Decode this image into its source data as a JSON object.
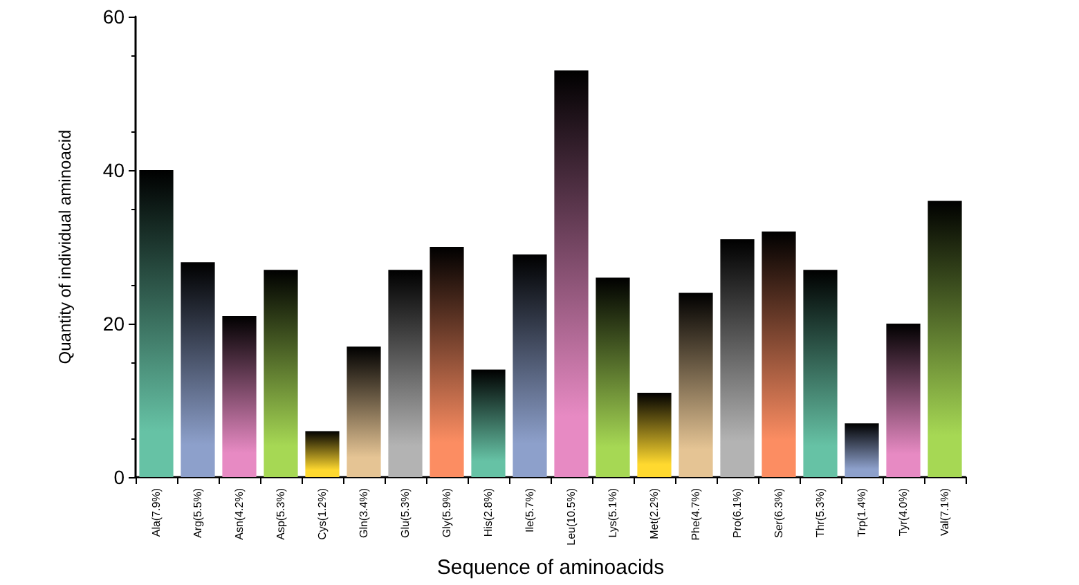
{
  "chart_data": {
    "type": "bar",
    "xlabel": "Sequence of aminoacids",
    "ylabel": "Quantity of individual aminoacid",
    "categories": [
      "Ala(7.9%)",
      "Arg(5.5%)",
      "Asn(4.2%)",
      "Asp(5.3%)",
      "Cys(1.2%)",
      "Gln(3.4%)",
      "Glu(5.3%)",
      "Gly(5.9%)",
      "His(2.8%)",
      "Ile(5.7%)",
      "Leu(10.5%)",
      "Lys(5.1%)",
      "Met(2.2%)",
      "Phe(4.7%)",
      "Pro(6.1%)",
      "Ser(6.3%)",
      "Thr(5.3%)",
      "Trp(1.4%)",
      "Tyr(4.0%)",
      "Val(7.1%)"
    ],
    "values": [
      40,
      28,
      21,
      27,
      6,
      17,
      27,
      30,
      14,
      29,
      53,
      26,
      11,
      24,
      31,
      32,
      27,
      7,
      20,
      36
    ],
    "colors": [
      "#66c2a5",
      "#8da0cb",
      "#e78ac3",
      "#a6d854",
      "#ffd92f",
      "#e5c494",
      "#b3b3b3",
      "#fc8d62",
      "#66c2a5",
      "#8da0cb",
      "#e78ac3",
      "#a6d854",
      "#ffd92f",
      "#e5c494",
      "#b3b3b3",
      "#fc8d62",
      "#66c2a5",
      "#8da0cb",
      "#e78ac3",
      "#a6d854"
    ],
    "ylim": [
      0,
      60
    ],
    "yticks": [
      0,
      20,
      40,
      60
    ],
    "grid": false
  }
}
